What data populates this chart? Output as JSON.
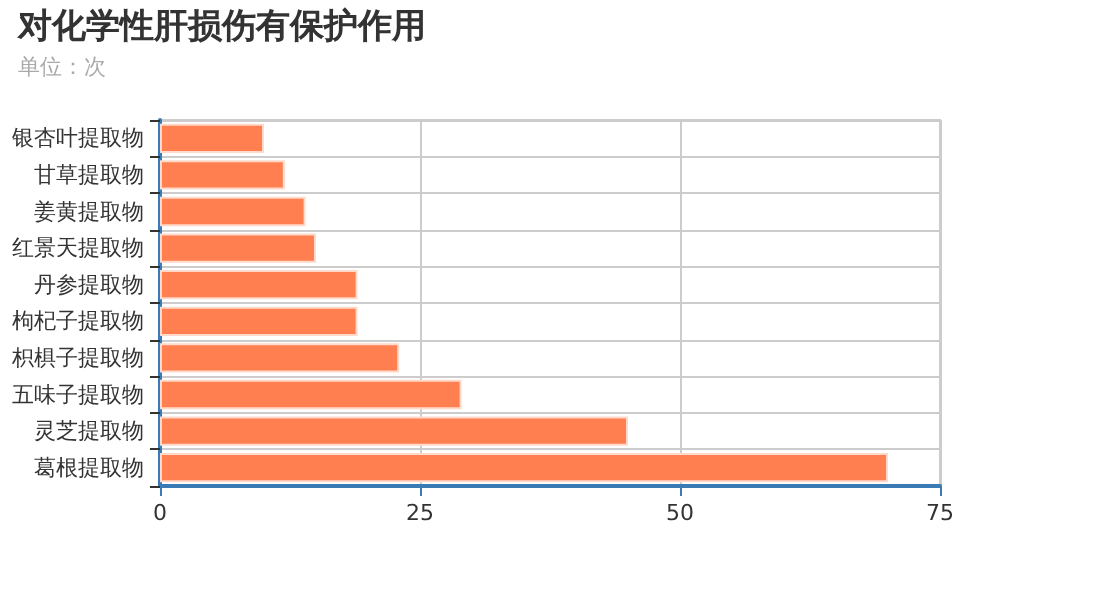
{
  "chart_data": {
    "type": "bar",
    "orientation": "horizontal",
    "title": "对化学性肝损伤有保护作用",
    "subtitle": "单位：次",
    "categories": [
      "银杏叶提取物",
      "甘草提取物",
      "姜黄提取物",
      "红景天提取物",
      "丹参提取物",
      "枸杞子提取物",
      "枳椇子提取物",
      "五味子提取物",
      "灵芝提取物",
      "葛根提取物"
    ],
    "values": [
      10,
      12,
      14,
      15,
      19,
      19,
      23,
      29,
      45,
      70
    ],
    "color": "#ff7f50",
    "xlim": [
      0,
      75
    ],
    "xticks": [
      0,
      25,
      50,
      75
    ],
    "grid": true
  }
}
